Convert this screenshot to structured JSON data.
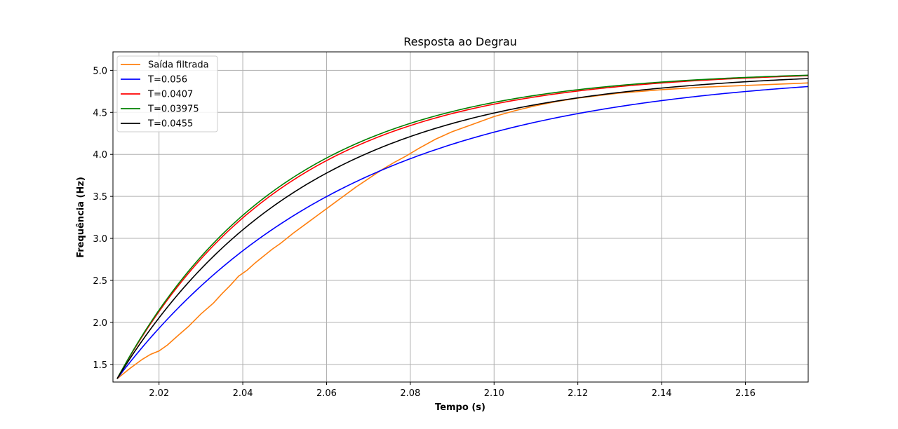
{
  "chart_data": {
    "type": "line",
    "title": "Resposta ao Degrau",
    "xlabel": "Tempo (s)",
    "ylabel": "Frequência (Hz)",
    "xlim": [
      2.009,
      2.175
    ],
    "ylim": [
      1.29,
      5.22
    ],
    "xticks": [
      2.02,
      2.04,
      2.06,
      2.08,
      2.1,
      2.12,
      2.14,
      2.16
    ],
    "xtick_labels": [
      "2.02",
      "2.04",
      "2.06",
      "2.08",
      "2.10",
      "2.12",
      "2.14",
      "2.16"
    ],
    "yticks": [
      1.5,
      2.0,
      2.5,
      3.0,
      3.5,
      4.0,
      4.5,
      5.0
    ],
    "ytick_labels": [
      "1.5",
      "2.0",
      "2.5",
      "3.0",
      "3.5",
      "4.0",
      "4.5",
      "5.0"
    ],
    "grid": true,
    "legend_position": "top-left",
    "series": [
      {
        "name": "Saída filtrada",
        "color": "#ff7f0e",
        "x": [
          2.01,
          2.013,
          2.016,
          2.018,
          2.02,
          2.022,
          2.024,
          2.027,
          2.03,
          2.033,
          2.035,
          2.037,
          2.039,
          2.041,
          2.043,
          2.045,
          2.047,
          2.049,
          2.052,
          2.055,
          2.058,
          2.061,
          2.064,
          2.067,
          2.07,
          2.073,
          2.076,
          2.079,
          2.082,
          2.086,
          2.09,
          2.095,
          2.1,
          2.105,
          2.11,
          2.115,
          2.12,
          2.125,
          2.13,
          2.14,
          2.15,
          2.16,
          2.17,
          2.175
        ],
        "y": [
          1.33,
          1.45,
          1.56,
          1.62,
          1.66,
          1.73,
          1.82,
          1.95,
          2.1,
          2.23,
          2.34,
          2.44,
          2.55,
          2.62,
          2.71,
          2.79,
          2.87,
          2.94,
          3.06,
          3.17,
          3.28,
          3.39,
          3.5,
          3.61,
          3.71,
          3.81,
          3.9,
          3.98,
          4.07,
          4.18,
          4.27,
          4.36,
          4.45,
          4.52,
          4.58,
          4.63,
          4.67,
          4.7,
          4.73,
          4.77,
          4.8,
          4.82,
          4.84,
          4.85
        ]
      },
      {
        "name": "T=0.056",
        "color": "#0000ff",
        "tau": 0.056,
        "y0": 1.33,
        "yfinal": 5.0
      },
      {
        "name": "T=0.0407",
        "color": "#ff0000",
        "tau": 0.0407,
        "y0": 1.33,
        "yfinal": 5.0
      },
      {
        "name": "T=0.03975",
        "color": "#008000",
        "tau": 0.03975,
        "y0": 1.33,
        "yfinal": 5.0
      },
      {
        "name": "T=0.0455",
        "color": "#000000",
        "tau": 0.0455,
        "y0": 1.33,
        "yfinal": 5.0
      }
    ],
    "t0": 2.01,
    "t_end": 2.175
  }
}
